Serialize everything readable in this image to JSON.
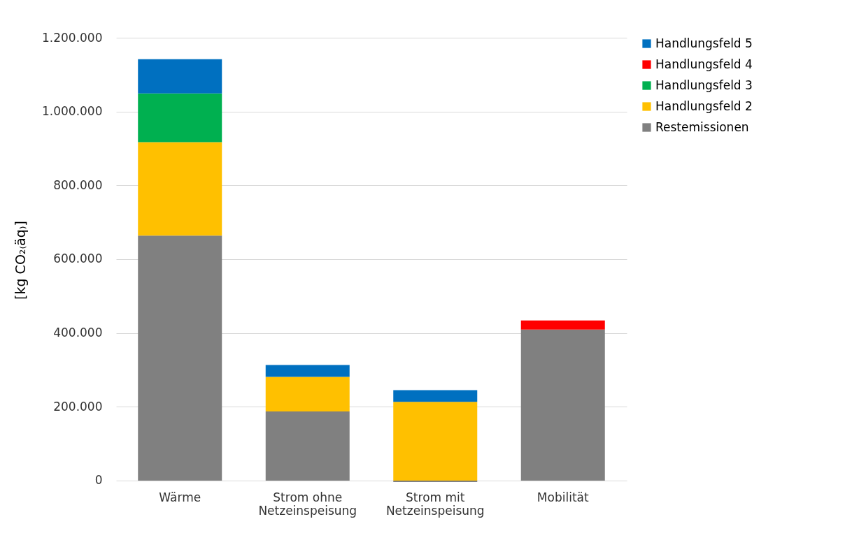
{
  "chart_data": {
    "type": "bar",
    "stacked": true,
    "ylabel": "[kg CO₂₍äq₎]",
    "categories": [
      "Wärme",
      "Strom ohne Netzeinspeisung",
      "Strom mit Netzeinspeisung",
      "Mobilität"
    ],
    "series": [
      {
        "name": "Restemissionen",
        "color": "#808080",
        "values": [
          664000,
          187000,
          -4000,
          409000
        ]
      },
      {
        "name": "Handlungsfeld 2",
        "color": "#ffc000",
        "values": [
          253000,
          94000,
          213000,
          null
        ]
      },
      {
        "name": "Handlungsfeld 3",
        "color": "#00b050",
        "values": [
          132000,
          null,
          null,
          null
        ]
      },
      {
        "name": "Handlungsfeld 4",
        "color": "#ff0000",
        "values": [
          null,
          null,
          null,
          25000
        ]
      },
      {
        "name": "Handlungsfeld 5",
        "color": "#0070c0",
        "values": [
          93000,
          32000,
          32000,
          null
        ]
      }
    ],
    "ylim": [
      -4000,
      1200000
    ],
    "yticks": [
      0,
      {
        "value": 200000,
        "label": "200.000"
      },
      {
        "value": 400000,
        "label": "400.000"
      },
      {
        "value": 600000,
        "label": "600.000"
      },
      {
        "value": 800000,
        "label": "800.000"
      },
      {
        "value": 1000000,
        "label": "1.000.000"
      },
      {
        "value": 1200000,
        "label": "1.200.000"
      }
    ],
    "grid": "y",
    "legend": "right"
  }
}
